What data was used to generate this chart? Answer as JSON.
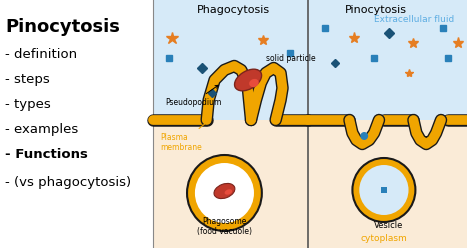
{
  "bg_color": "#ffffff",
  "left_panel_bg": "#ffffff",
  "phago_bg": "#d6eaf8",
  "pino_bg": "#fef9e7",
  "extracell_bg": "#d6eaf8",
  "cytoplasm_bg": "#fef5c7",
  "membrane_color": "#f0a500",
  "membrane_outline": "#1a1a1a",
  "solid_particle_color": "#c0392b",
  "phagosome_outer": "#f0a500",
  "phagosome_inner_bg": "#ffffff",
  "phagosome_particle_color": "#c0392b",
  "vesicle_outer": "#f0a500",
  "vesicle_inner_bg": "#d6eaf8",
  "left_text_lines": [
    "Pinocytosis",
    "- definition",
    "- steps",
    "- types",
    "- examples",
    "- Functions",
    "- (vs phagocytosis)"
  ],
  "phago_title": "Phagocytosis",
  "pino_title": "Pinocytosis",
  "extracell_label": "Extracellular fluid",
  "cytoplasm_label": "cytoplasm",
  "plasma_membrane_label": "Plasma\nmembrane",
  "pseudopodium_label": "Pseudopodium",
  "solid_particle_label": "solid particle",
  "phagosome_label": "Phagosome\n(food vacuole)",
  "vesicle_label": "Vesicle",
  "star_color": "#e67e22",
  "square_color": "#2980b9",
  "diamond_color": "#1a5276"
}
